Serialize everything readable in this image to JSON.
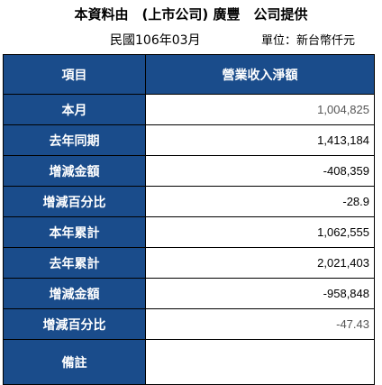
{
  "header": {
    "title": "本資料由　(上市公司) 廣豐　公司提供",
    "date": "民國106年03月",
    "unit": "單位：新台幣仟元"
  },
  "table": {
    "column_headers": [
      "項目",
      "營業收入淨額"
    ],
    "rows": [
      {
        "label": "本月",
        "value": "1,004,825"
      },
      {
        "label": "去年同期",
        "value": "1,413,184"
      },
      {
        "label": "增減金額",
        "value": "-408,359"
      },
      {
        "label": "增減百分比",
        "value": "-28.9"
      },
      {
        "label": "本年累計",
        "value": "1,062,555"
      },
      {
        "label": "去年累計",
        "value": "2,021,403"
      },
      {
        "label": "增減金額",
        "value": "-958,848"
      },
      {
        "label": "增減百分比",
        "value": "-47.43"
      },
      {
        "label": "備註",
        "value": ""
      }
    ]
  },
  "colors": {
    "header_bg": "#1a4c8b",
    "header_text": "#ffffff"
  }
}
